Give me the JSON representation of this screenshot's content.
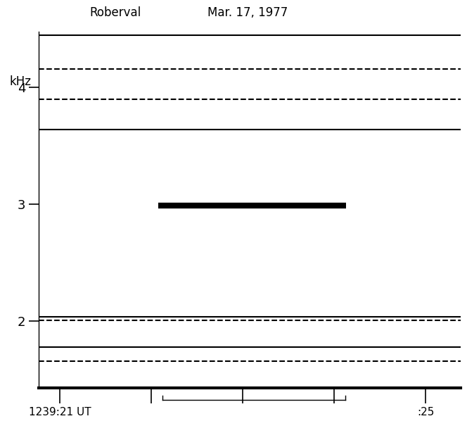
{
  "chart_data": {
    "type": "spectrogram",
    "title": "Roberval",
    "subtitle": "Mar. 17, 1977",
    "ylabel": "kHz",
    "xlim": [
      20.77,
      25.38
    ],
    "xticks": [
      {
        "value": 21,
        "label": "1239:21 UT"
      },
      {
        "value": 22,
        "label": null
      },
      {
        "value": 23,
        "label": null
      },
      {
        "value": 24,
        "label": null
      },
      {
        "value": 25,
        "label": ":25"
      }
    ],
    "ylim": [
      1.43,
      4.48
    ],
    "yticks": [
      2,
      3,
      4
    ],
    "color": "#000000",
    "signal": {
      "freq": 2.99,
      "start": 22.08,
      "end": 24.13
    },
    "bracket": [
      22.12,
      24.12
    ],
    "lines": [
      {
        "freq": 4.45,
        "line_style": "solid"
      },
      {
        "freq": 4.16,
        "line_style": "dashed"
      },
      {
        "freq": 3.9,
        "line_style": "dashed"
      },
      {
        "freq": 3.64,
        "line_style": "solid"
      },
      {
        "freq": 2.04,
        "line_style": "solid"
      },
      {
        "freq": 2.01,
        "line_style": "dashed"
      },
      {
        "freq": 1.78,
        "line_style": "solid"
      },
      {
        "freq": 1.66,
        "line_style": "dashed"
      }
    ]
  }
}
